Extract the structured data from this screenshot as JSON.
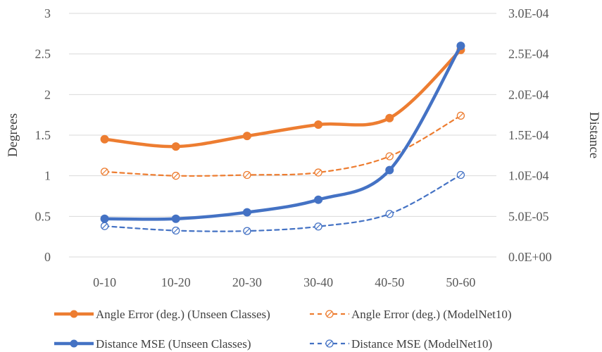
{
  "chart_data": {
    "type": "line",
    "title": "",
    "xlabel": "",
    "ylabel_left": "Degrees",
    "ylabel_right": "Distance",
    "categories": [
      "0-10",
      "10-20",
      "20-30",
      "30-40",
      "40-50",
      "50-60"
    ],
    "ylim_left": [
      0,
      3
    ],
    "ylim_right": [
      0,
      0.0003
    ],
    "yticks_left": [
      "0",
      "0.5",
      "1",
      "1.5",
      "2",
      "2.5",
      "3"
    ],
    "yticks_right": [
      "0.0E+00",
      "5.0E-05",
      "1.0E-04",
      "1.5E-04",
      "2.0E-04",
      "2.5E-04",
      "3.0E-04"
    ],
    "grid": true,
    "legend_position": "bottom",
    "series": [
      {
        "name": "Angle Error (deg.) (Unseen Classes)",
        "axis": "left",
        "color": "#ED7D31",
        "style": "solid",
        "marker": "filled",
        "values": [
          1.45,
          1.36,
          1.49,
          1.63,
          1.71,
          2.55
        ]
      },
      {
        "name": "Angle Error (deg.) (ModelNet10)",
        "axis": "left",
        "color": "#ED7D31",
        "style": "dashed",
        "marker": "hollow",
        "values": [
          1.05,
          1.0,
          1.01,
          1.04,
          1.24,
          1.74
        ]
      },
      {
        "name": "Distance MSE (Unseen Classes)",
        "axis": "right",
        "color": "#4472C4",
        "style": "solid",
        "marker": "filled",
        "values": [
          4.7e-05,
          4.7e-05,
          5.5e-05,
          7.05e-05,
          0.000107,
          0.00026
        ]
      },
      {
        "name": "Distance MSE (ModelNet10)",
        "axis": "right",
        "color": "#4472C4",
        "style": "dashed",
        "marker": "hollow",
        "values": [
          3.8e-05,
          3.25e-05,
          3.2e-05,
          3.75e-05,
          5.3e-05,
          0.000101
        ]
      }
    ]
  }
}
